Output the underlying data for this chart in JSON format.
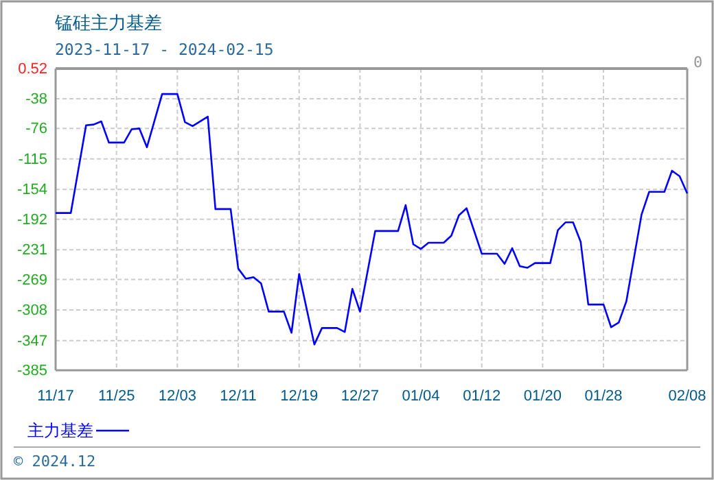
{
  "chart_data": {
    "type": "line",
    "title": "锰硅主力基差",
    "subtitle": "2023-11-17 - 2024-02-15",
    "x": [
      "2023-11-17",
      "2023-11-19",
      "2023-11-21",
      "2023-11-22",
      "2023-11-23",
      "2023-11-24",
      "2023-11-26",
      "2023-11-27",
      "2023-11-28",
      "2023-11-29",
      "2023-12-01",
      "2023-12-03",
      "2023-12-04",
      "2023-12-05",
      "2023-12-07",
      "2023-12-08",
      "2023-12-10",
      "2023-12-11",
      "2023-12-12",
      "2023-12-13",
      "2023-12-14",
      "2023-12-15",
      "2023-12-17",
      "2023-12-18",
      "2023-12-19",
      "2023-12-21",
      "2023-12-22",
      "2023-12-24",
      "2023-12-25",
      "2023-12-26",
      "2023-12-27",
      "2023-12-29",
      "2024-01-01",
      "2024-01-02",
      "2024-01-03",
      "2024-01-04",
      "2024-01-05",
      "2024-01-07",
      "2024-01-08",
      "2024-01-09",
      "2024-01-10",
      "2024-01-12",
      "2024-01-14",
      "2024-01-15",
      "2024-01-16",
      "2024-01-17",
      "2024-01-18",
      "2024-01-19",
      "2024-01-21",
      "2024-01-22",
      "2024-01-23",
      "2024-01-24",
      "2024-01-25",
      "2024-01-26",
      "2024-01-28",
      "2024-01-29",
      "2024-01-30",
      "2024-01-31",
      "2024-02-02",
      "2024-02-03",
      "2024-02-05",
      "2024-02-06",
      "2024-02-07",
      "2024-02-08"
    ],
    "series": [
      {
        "name": "主力基差",
        "color": "#0000ff",
        "values": [
          -184,
          -184,
          -72,
          -71,
          -67,
          -94,
          -94,
          -77,
          -76,
          -100,
          -32,
          -32,
          -68,
          -73,
          -61,
          -179,
          -179,
          -255,
          -268,
          -266,
          -274,
          -310,
          -310,
          -337,
          -262,
          -352,
          -331,
          -331,
          -336,
          -281,
          -310,
          -207,
          -207,
          -174,
          -224,
          -230,
          -222,
          -222,
          -213,
          -187,
          -178,
          -236,
          -236,
          -249,
          -229,
          -252,
          -254,
          -248,
          -248,
          -206,
          -196,
          -196,
          -221,
          -301,
          -301,
          -330,
          -324,
          -297,
          -186,
          -157,
          -157,
          -130,
          -137,
          -159
        ]
      }
    ],
    "xlim": [
      "2023-11-17",
      "2024-02-08"
    ],
    "xticks": [
      {
        "value": "2023-11-17",
        "label": "11/17"
      },
      {
        "value": "2023-11-25",
        "label": "11/25"
      },
      {
        "value": "2023-12-03",
        "label": "12/03"
      },
      {
        "value": "2023-12-11",
        "label": "12/11"
      },
      {
        "value": "2023-12-19",
        "label": "12/19"
      },
      {
        "value": "2023-12-27",
        "label": "12/27"
      },
      {
        "value": "2024-01-04",
        "label": "01/04"
      },
      {
        "value": "2024-01-12",
        "label": "01/12"
      },
      {
        "value": "2024-01-20",
        "label": "01/20"
      },
      {
        "value": "2024-01-28",
        "label": "01/28"
      },
      {
        "value": "2024-02-08",
        "label": "02/08"
      }
    ],
    "ylim": [
      -385,
      0.52
    ],
    "yticks": [
      0.52,
      -38,
      -76,
      -115,
      -154,
      -192,
      -231,
      -269,
      -308,
      -347,
      -385
    ],
    "grid": true,
    "legend": "bottom left",
    "marker": "none",
    "line_style": "solid",
    "annotations": [
      "0",
      "© 2024.12"
    ]
  }
}
